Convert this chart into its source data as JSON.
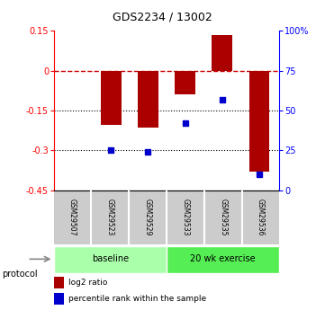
{
  "title": "GDS2234 / 13002",
  "samples": [
    "GSM29507",
    "GSM29523",
    "GSM29529",
    "GSM29533",
    "GSM29535",
    "GSM29536"
  ],
  "log2_ratio": [
    0.0,
    -0.205,
    -0.215,
    -0.09,
    0.135,
    -0.38
  ],
  "percentile_rank": [
    null,
    25.0,
    24.0,
    42.0,
    57.0,
    10.0
  ],
  "groups": [
    {
      "label": "baseline",
      "color": "#aaffaa",
      "start": 0,
      "end": 3
    },
    {
      "label": "20 wk exercise",
      "color": "#55ee55",
      "start": 3,
      "end": 6
    }
  ],
  "ylim_left": [
    -0.45,
    0.15
  ],
  "yticks_left": [
    0.15,
    0.0,
    -0.15,
    -0.3,
    -0.45
  ],
  "ytick_labels_left": [
    "0.15",
    "0",
    "-0.15",
    "-0.3",
    "-0.45"
  ],
  "yticks_right_pct": [
    100,
    75,
    50,
    25,
    0
  ],
  "ytick_labels_right": [
    "100%",
    "75",
    "50",
    "25",
    "0"
  ],
  "bar_color": "#aa0000",
  "dot_color": "#0000cc",
  "bar_width": 0.55,
  "dotted_lines": [
    -0.15,
    -0.3
  ],
  "protocol_label": "protocol",
  "legend_items": [
    {
      "label": "log2 ratio",
      "color": "#aa0000"
    },
    {
      "label": "percentile rank within the sample",
      "color": "#0000cc"
    }
  ],
  "sample_bg_color": "#cccccc",
  "bg_color": "white"
}
